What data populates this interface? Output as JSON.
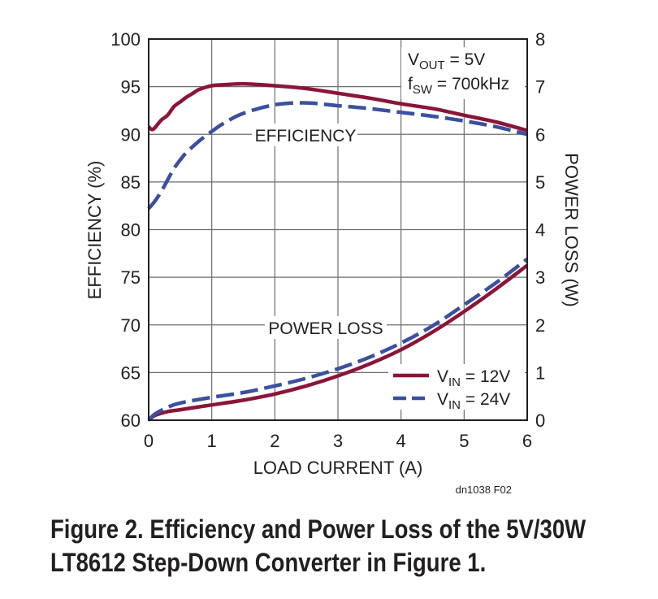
{
  "chart_data": {
    "type": "line",
    "title": "",
    "xlabel": "LOAD CURRENT (A)",
    "ylabel_left": "EFFICIENCY (%)",
    "ylabel_right": "POWER LOSS (W)",
    "xlim": [
      0,
      6
    ],
    "ylim_left": [
      60,
      100
    ],
    "ylim_right": [
      0,
      8
    ],
    "grid": true,
    "x_ticks": [
      "0",
      "1",
      "2",
      "3",
      "4",
      "5",
      "6"
    ],
    "y_ticks_left": [
      "60",
      "65",
      "70",
      "75",
      "80",
      "85",
      "90",
      "95",
      "100"
    ],
    "y_ticks_right": [
      "0",
      "1",
      "2",
      "3",
      "4",
      "5",
      "6",
      "7",
      "8"
    ],
    "annotations": {
      "vout_label": "V",
      "vout_sub": "OUT",
      "vout_value": " = 5V",
      "fsw_label": "f",
      "fsw_sub": "SW",
      "fsw_value": " = 700kHz",
      "efficiency_label": "EFFICIENCY",
      "power_loss_label": "POWER LOSS",
      "figure_id": "dn1038 F02"
    },
    "legend": {
      "position": "bottom-right",
      "entries": [
        {
          "prefix": "V",
          "sub": "IN",
          "suffix": " = 12V",
          "style": "solid"
        },
        {
          "prefix": "V",
          "sub": "IN",
          "suffix": " = 24V",
          "style": "dashed"
        }
      ]
    },
    "series": [
      {
        "name": "Efficiency, VIN = 12V",
        "axis": "left",
        "style": "solid",
        "color": "#8b1538",
        "x": [
          0,
          0.05,
          0.1,
          0.2,
          0.3,
          0.4,
          0.5,
          0.6,
          0.7,
          0.8,
          1.0,
          1.2,
          1.5,
          2.0,
          2.5,
          3.0,
          3.5,
          4.0,
          4.5,
          5.0,
          5.5,
          6.0
        ],
        "y": [
          90.8,
          90.5,
          90.7,
          91.5,
          92.0,
          92.9,
          93.4,
          93.9,
          94.3,
          94.7,
          95.1,
          95.2,
          95.3,
          95.1,
          94.8,
          94.3,
          93.8,
          93.2,
          92.7,
          92.0,
          91.3,
          90.4
        ]
      },
      {
        "name": "Efficiency, VIN = 24V",
        "axis": "left",
        "style": "dashed",
        "color": "#3a50a0",
        "x": [
          0,
          0.1,
          0.2,
          0.3,
          0.4,
          0.5,
          0.6,
          0.8,
          1.0,
          1.2,
          1.5,
          2.0,
          2.5,
          3.0,
          3.5,
          4.0,
          4.5,
          5.0,
          5.5,
          6.0
        ],
        "y": [
          82.2,
          83.0,
          84.0,
          85.2,
          86.4,
          87.3,
          88.1,
          89.3,
          90.3,
          91.2,
          92.2,
          93.1,
          93.3,
          93.0,
          92.7,
          92.3,
          91.9,
          91.4,
          90.8,
          90.0
        ]
      },
      {
        "name": "Power Loss, VIN = 12V",
        "axis": "right",
        "style": "solid",
        "color": "#8b1538",
        "x": [
          0,
          0.1,
          0.3,
          0.5,
          1.0,
          1.5,
          2.0,
          2.5,
          3.0,
          3.5,
          4.0,
          4.5,
          5.0,
          5.5,
          6.0
        ],
        "y": [
          0.0,
          0.1,
          0.18,
          0.22,
          0.32,
          0.42,
          0.55,
          0.72,
          0.93,
          1.18,
          1.48,
          1.85,
          2.28,
          2.75,
          3.25
        ]
      },
      {
        "name": "Power Loss, VIN = 24V",
        "axis": "right",
        "style": "dashed",
        "color": "#3a50a0",
        "x": [
          0,
          0.1,
          0.3,
          0.5,
          1.0,
          1.5,
          2.0,
          2.5,
          3.0,
          3.5,
          4.0,
          4.5,
          5.0,
          5.5,
          6.0
        ],
        "y": [
          0.0,
          0.13,
          0.27,
          0.36,
          0.48,
          0.58,
          0.72,
          0.88,
          1.08,
          1.32,
          1.62,
          1.98,
          2.42,
          2.88,
          3.38
        ]
      }
    ]
  },
  "caption": {
    "line1": "Figure 2. Efficiency and Power Loss of the 5V/30W",
    "line2": "LT8612 Step-Down Converter in Figure 1."
  }
}
